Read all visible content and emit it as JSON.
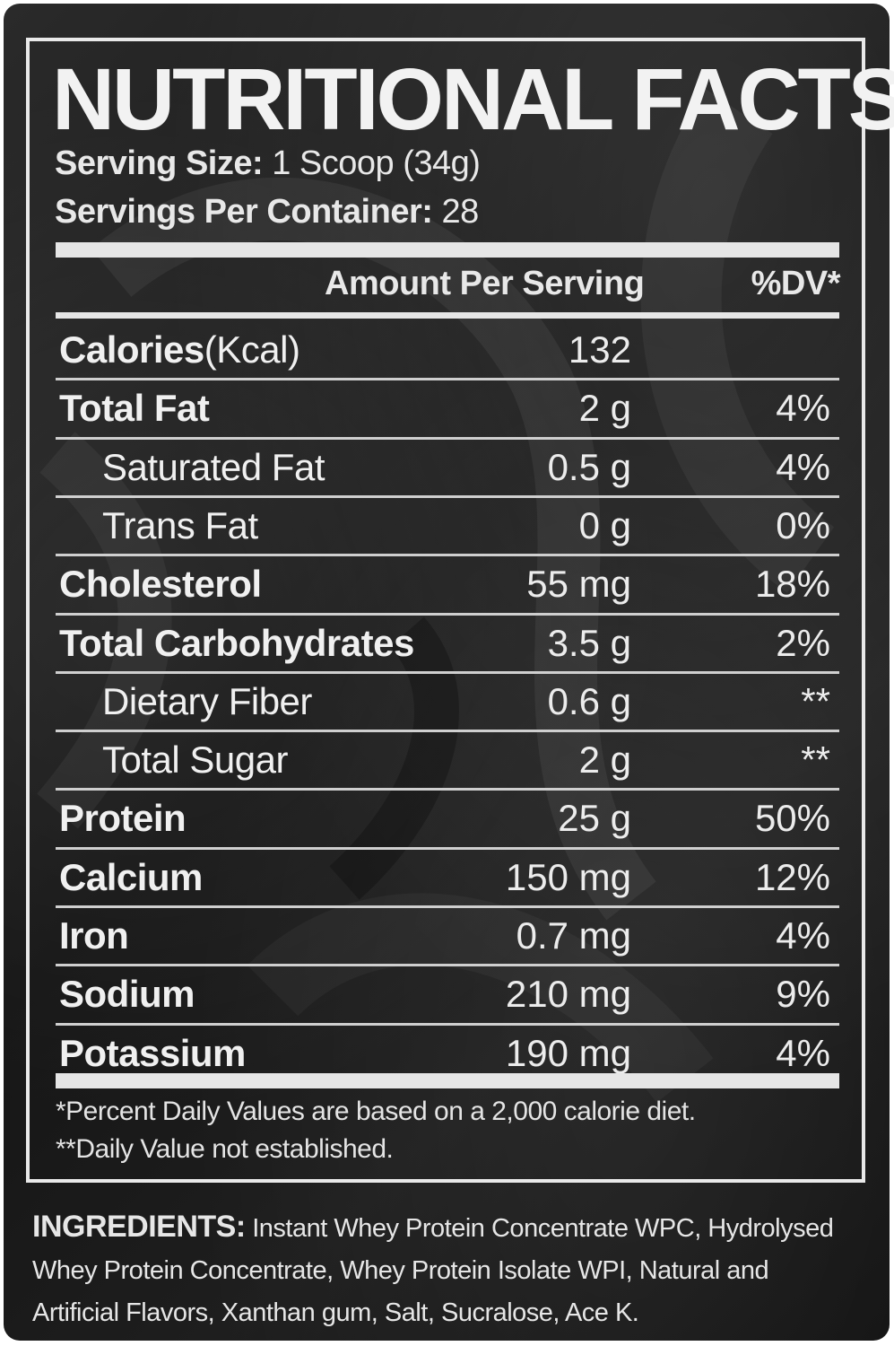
{
  "title": "NUTRITIONAL FACTS",
  "serving_size": {
    "label": "Serving Size:",
    "value": "1 Scoop (34g)"
  },
  "servings_per_container": {
    "label": "Servings Per Container:",
    "value": "28"
  },
  "header": {
    "amount": "Amount Per Serving",
    "dv": "%DV*"
  },
  "rows": [
    {
      "name": "Calories",
      "unit": "(Kcal)",
      "amount": "132",
      "dv": "",
      "style": "bold"
    },
    {
      "name": "Total Fat",
      "unit": "",
      "amount": "2 g",
      "dv": "4%",
      "style": "bold"
    },
    {
      "name": "Saturated Fat",
      "unit": "",
      "amount": "0.5 g",
      "dv": "4%",
      "style": "indent"
    },
    {
      "name": "Trans Fat",
      "unit": "",
      "amount": "0 g",
      "dv": "0%",
      "style": "indent"
    },
    {
      "name": "Cholesterol",
      "unit": "",
      "amount": "55 mg",
      "dv": "18%",
      "style": "bold"
    },
    {
      "name": "Total Carbohydrates",
      "unit": "",
      "amount": "3.5 g",
      "dv": "2%",
      "style": "bold"
    },
    {
      "name": "Dietary Fiber",
      "unit": "",
      "amount": "0.6 g",
      "dv": "**",
      "style": "indent"
    },
    {
      "name": "Total Sugar",
      "unit": "",
      "amount": "2 g",
      "dv": "**",
      "style": "indent"
    },
    {
      "name": "Protein",
      "unit": "",
      "amount": "25 g",
      "dv": "50%",
      "style": "bold"
    },
    {
      "name": "Calcium",
      "unit": "",
      "amount": "150 mg",
      "dv": "12%",
      "style": "bold"
    },
    {
      "name": "Iron",
      "unit": "",
      "amount": "0.7 mg",
      "dv": "4%",
      "style": "bold"
    },
    {
      "name": "Sodium",
      "unit": "",
      "amount": "210 mg",
      "dv": "9%",
      "style": "bold"
    },
    {
      "name": "Potassium",
      "unit": "",
      "amount": "190 mg",
      "dv": "4%",
      "style": "bold"
    }
  ],
  "footnotes": [
    "*Percent Daily Values are based on a 2,000 calorie diet.",
    "**Daily Value not established."
  ],
  "ingredients": {
    "label": "INGREDIENTS:",
    "text": "Instant Whey Protein Concentrate WPC, Hydrolysed Whey Protein Concentrate, Whey Protein Isolate WPI, Natural and Artificial Flavors, Xanthan gum, Salt, Sucralose, Ace K."
  },
  "colors": {
    "background": "#1a1a1a",
    "text": "#f0f0f0",
    "rules": "#e6e6e6"
  }
}
